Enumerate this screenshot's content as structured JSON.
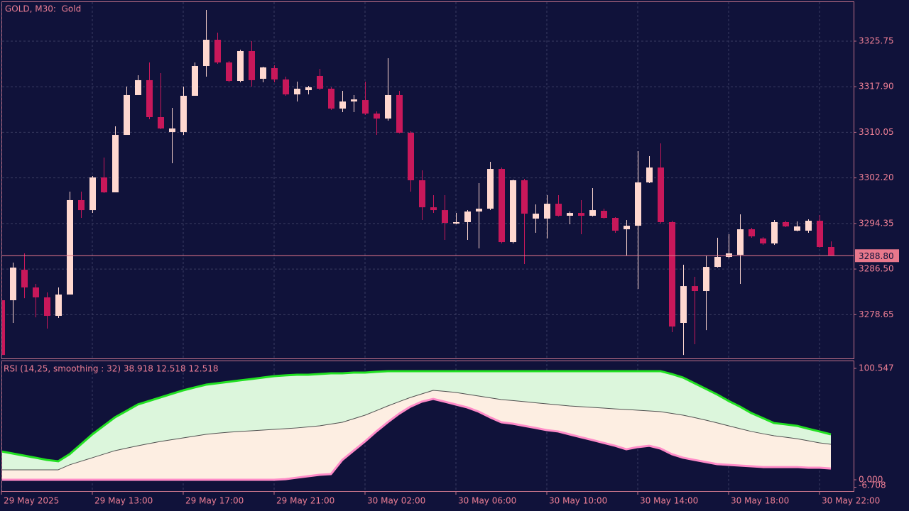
{
  "chart_data": [
    {
      "type": "candlestick",
      "title": "GOLD, M30:  Gold",
      "up_color": "#ffd8d0",
      "down_color": "#c8185a",
      "grid": true,
      "categories": [
        "29 May 2025",
        null,
        null,
        null,
        null,
        null,
        null,
        null,
        "29 May 13:00",
        null,
        null,
        null,
        null,
        null,
        null,
        null,
        "29 May 17:00",
        null,
        null,
        null,
        null,
        null,
        null,
        null,
        "29 May 21:00",
        null,
        null,
        null,
        null,
        null,
        null,
        null,
        "30 May 02:00",
        null,
        null,
        null,
        null,
        null,
        null,
        null,
        "30 May 06:00",
        null,
        null,
        null,
        null,
        null,
        null,
        null,
        "30 May 10:00",
        null,
        null,
        null,
        null,
        null,
        null,
        null,
        "30 May 14:00",
        null,
        null,
        null,
        null,
        null,
        null,
        null,
        "30 May 18:00",
        null,
        null,
        null,
        null,
        null,
        null,
        null,
        "30 May 22:00",
        null
      ],
      "open": [
        3281.13,
        3281.13,
        3286.38,
        3283.33,
        3281.62,
        3278.44,
        3282.11,
        3298.37,
        3296.65,
        3302.28,
        3299.71,
        3309.61,
        3316.46,
        3319.03,
        3312.67,
        3310.1,
        3310.1,
        3316.34,
        3321.47,
        3325.99,
        3322.08,
        3318.9,
        3324.04,
        3319.27,
        3321.1,
        3319.15,
        3316.58,
        3317.31,
        3319.76,
        3317.56,
        3314.14,
        3315.36,
        3315.6,
        3313.28,
        3312.42,
        3316.46,
        3309.98,
        3301.79,
        3297.14,
        3296.65,
        3294.33,
        3294.58,
        3296.41,
        3296.9,
        3303.74,
        3291.15,
        3301.79,
        3295.19,
        3295.19,
        3297.75,
        3295.68,
        3296.16,
        3295.68,
        3296.53,
        3295.31,
        3293.35,
        3293.96,
        3301.42,
        3303.99,
        3294.58,
        3277.22,
        3283.57,
        3282.72,
        3286.87,
        3288.59,
        3288.95,
        3293.35,
        3291.76,
        3290.91,
        3294.58,
        3293.11,
        3293.11,
        3294.82,
        3290.3
      ],
      "high": [
        3281.13,
        3287.61,
        3289.2,
        3283.94,
        3282.47,
        3283.33,
        3299.83,
        3299.83,
        3302.52,
        3305.7,
        3311.08,
        3317.93,
        3319.88,
        3322.08,
        3320.25,
        3314.26,
        3317.93,
        3322.08,
        3331.13,
        3327.22,
        3322.33,
        3324.28,
        3325.75,
        3321.35,
        3321.59,
        3319.64,
        3318.78,
        3318.05,
        3320.98,
        3317.8,
        3317.19,
        3316.46,
        3318.78,
        3313.65,
        3322.82,
        3317.19,
        3310.22,
        3303.5,
        3299.22,
        3299.22,
        3296.16,
        3296.65,
        3301.3,
        3304.97,
        3303.99,
        3301.91,
        3302.03,
        3297.63,
        3299.22,
        3299.22,
        3296.41,
        3298.37,
        3300.44,
        3296.9,
        3295.43,
        3294.94,
        3306.8,
        3305.94,
        3308.15,
        3294.82,
        3287.24,
        3285.16,
        3288.83,
        3291.89,
        3292.5,
        3295.92,
        3293.6,
        3292.01,
        3294.94,
        3294.82,
        3294.7,
        3295.06,
        3295.8,
        3291.27
      ],
      "low": [
        3271.71,
        3277.22,
        3281.49,
        3278.19,
        3276.24,
        3278.07,
        3282.11,
        3295.31,
        3296.16,
        3299.59,
        3299.71,
        3309.61,
        3316.46,
        3312.3,
        3310.59,
        3304.72,
        3309.61,
        3316.34,
        3319.64,
        3321.84,
        3318.66,
        3318.66,
        3317.93,
        3318.66,
        3318.66,
        3316.34,
        3315.36,
        3316.58,
        3317.31,
        3313.89,
        3313.52,
        3313.52,
        3313.04,
        3309.61,
        3312.06,
        3309.86,
        3299.83,
        3294.94,
        3296.16,
        3291.52,
        3294.21,
        3291.52,
        3290.05,
        3296.65,
        3290.91,
        3290.91,
        3287.36,
        3292.74,
        3291.76,
        3295.55,
        3294.21,
        3292.5,
        3295.55,
        3295.19,
        3292.74,
        3288.83,
        3283.08,
        3301.3,
        3294.33,
        3275.63,
        3271.71,
        3273.55,
        3275.99,
        3286.75,
        3288.34,
        3283.94,
        3291.89,
        3290.66,
        3290.66,
        3293.72,
        3292.99,
        3292.74,
        3290.17,
        3288.8
      ],
      "close": [
        3271.71,
        3286.75,
        3283.33,
        3281.62,
        3278.44,
        3282.11,
        3298.37,
        3296.65,
        3302.28,
        3299.71,
        3309.61,
        3316.46,
        3319.03,
        3312.67,
        3310.71,
        3310.71,
        3316.34,
        3321.47,
        3325.99,
        3322.08,
        3318.9,
        3324.04,
        3319.03,
        3321.23,
        3319.15,
        3316.58,
        3317.56,
        3317.8,
        3317.56,
        3314.14,
        3315.36,
        3315.72,
        3313.28,
        3312.42,
        3316.46,
        3309.98,
        3301.79,
        3297.14,
        3296.65,
        3294.45,
        3294.58,
        3296.41,
        3296.9,
        3303.74,
        3291.15,
        3301.79,
        3296.04,
        3296.04,
        3297.75,
        3295.68,
        3296.16,
        3295.68,
        3296.65,
        3295.31,
        3293.11,
        3293.96,
        3301.42,
        3303.99,
        3294.58,
        3276.6,
        3283.57,
        3282.72,
        3286.87,
        3288.59,
        3289.2,
        3293.35,
        3292.13,
        3290.91,
        3294.58,
        3293.84,
        3293.84,
        3294.82,
        3290.3,
        3288.8
      ],
      "ylim": [
        3271.11,
        3332.47
      ],
      "yticks": [
        3325.75,
        {
          "value": 3317.9,
          "label": "3317.90"
        },
        3310.05,
        {
          "value": 3302.2,
          "label": "3302.20"
        },
        3294.35,
        {
          "value": 3286.5,
          "label": "3286.50"
        },
        3278.65
      ],
      "last_price": {
        "value": 3288.8,
        "label": "3288.80"
      },
      "last_price_color": "#e8788c"
    },
    {
      "type": "band",
      "title": "RSI (14,25, smoothing : 32) 38.918 12.518 12.518",
      "fill_upper": "#dcf6dc",
      "fill_lower": "#fdeee2",
      "series": [
        {
          "color": "#22e022",
          "values": [
            25.6,
            23.7,
            21.8,
            19.9,
            17.9,
            16.7,
            23.1,
            32.0,
            41.0,
            48.7,
            56.4,
            62.1,
            67.9,
            71.1,
            74.3,
            77.5,
            80.7,
            83.3,
            85.8,
            87.1,
            88.4,
            89.7,
            90.9,
            92.2,
            93.5,
            94.2,
            94.8,
            94.8,
            95.4,
            96.1,
            96.1,
            96.7,
            96.7,
            97.4,
            98.0,
            98.0,
            98.0,
            98.0,
            98.0,
            98.0,
            98.0,
            98.0,
            98.0,
            98.0,
            98.0,
            98.0,
            98.0,
            98.0,
            98.0,
            98.0,
            98.0,
            98.0,
            98.0,
            98.0,
            98.0,
            98.0,
            98.0,
            98.0,
            98.0,
            95.4,
            92.2,
            87.1,
            82.0,
            76.9,
            71.1,
            66.0,
            60.2,
            55.7,
            51.2,
            50.0,
            48.7,
            46.1,
            43.6,
            41.0
          ]
        },
        {
          "color": "#505050",
          "values": [
            9.0,
            9.0,
            9.0,
            9.0,
            9.0,
            9.0,
            13.5,
            16.7,
            19.9,
            23.1,
            26.3,
            28.5,
            30.7,
            32.7,
            34.6,
            36.2,
            37.8,
            39.4,
            41.0,
            42.0,
            42.9,
            43.6,
            44.2,
            44.8,
            45.5,
            46.1,
            46.8,
            47.7,
            48.7,
            50.3,
            51.9,
            55.1,
            58.3,
            62.4,
            66.6,
            70.5,
            74.3,
            77.5,
            80.7,
            79.8,
            78.8,
            77.2,
            75.6,
            74.0,
            72.4,
            71.5,
            70.5,
            69.5,
            68.5,
            67.6,
            66.6,
            66.0,
            65.3,
            64.7,
            64.0,
            63.4,
            62.8,
            62.1,
            61.5,
            59.9,
            58.3,
            56.1,
            53.8,
            51.3,
            48.7,
            46.1,
            43.6,
            41.6,
            39.7,
            38.4,
            37.1,
            35.2,
            33.3,
            32.0
          ]
        },
        {
          "color": "#ff8cc8",
          "values": [
            0.0,
            0.0,
            0.0,
            0.0,
            0.0,
            0.0,
            0.0,
            0.0,
            0.0,
            0.0,
            0.0,
            0.0,
            0.0,
            0.0,
            0.0,
            0.0,
            0.0,
            0.0,
            0.0,
            0.0,
            0.0,
            0.0,
            0.0,
            0.0,
            0.0,
            0.6,
            1.9,
            3.2,
            4.5,
            5.1,
            17.9,
            26.3,
            34.6,
            43.6,
            51.9,
            59.6,
            66.0,
            70.5,
            73.0,
            70.5,
            67.9,
            65.3,
            61.5,
            56.4,
            51.9,
            50.6,
            48.7,
            46.8,
            44.8,
            43.6,
            41.0,
            38.4,
            35.9,
            33.3,
            30.7,
            27.5,
            29.5,
            30.7,
            28.2,
            23.1,
            19.9,
            17.9,
            16.0,
            14.1,
            13.5,
            12.8,
            12.2,
            11.5,
            11.5,
            11.5,
            11.5,
            10.9,
            10.9,
            10.2
          ]
        }
      ],
      "y2lim": [
        -6.708,
        100.547
      ],
      "y2ticks": [
        100.547,
        {
          "value": 0,
          "label": "0.000"
        },
        -6.708
      ]
    }
  ]
}
